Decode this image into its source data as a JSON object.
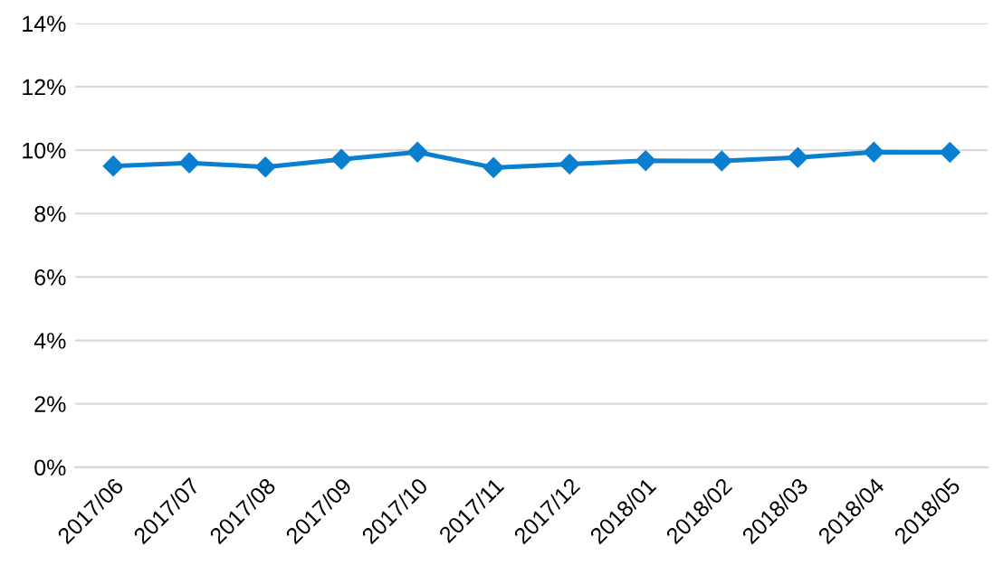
{
  "chart_data": {
    "type": "line",
    "categories": [
      "2017/06",
      "2017/07",
      "2017/08",
      "2017/09",
      "2017/10",
      "2017/11",
      "2017/12",
      "2018/01",
      "2018/02",
      "2018/03",
      "2018/04",
      "2018/05"
    ],
    "series": [
      {
        "color": "#0a7fcf",
        "values": [
          9.5,
          9.6,
          9.47,
          9.71,
          9.94,
          9.45,
          9.56,
          9.67,
          9.66,
          9.77,
          9.94,
          9.93
        ]
      }
    ],
    "ylim": [
      0,
      14
    ],
    "yticks": [
      {
        "value": 0,
        "label": "0%"
      },
      {
        "value": 2,
        "label": "2%"
      },
      {
        "value": 4,
        "label": "4%"
      },
      {
        "value": 6,
        "label": "6%"
      },
      {
        "value": 8,
        "label": "8%"
      },
      {
        "value": 10,
        "label": "10%"
      },
      {
        "value": 12,
        "label": "12%"
      },
      {
        "value": 14,
        "label": "14%"
      }
    ],
    "grid": "y",
    "marker": "diamond",
    "line_style": "solid",
    "legend": false
  }
}
